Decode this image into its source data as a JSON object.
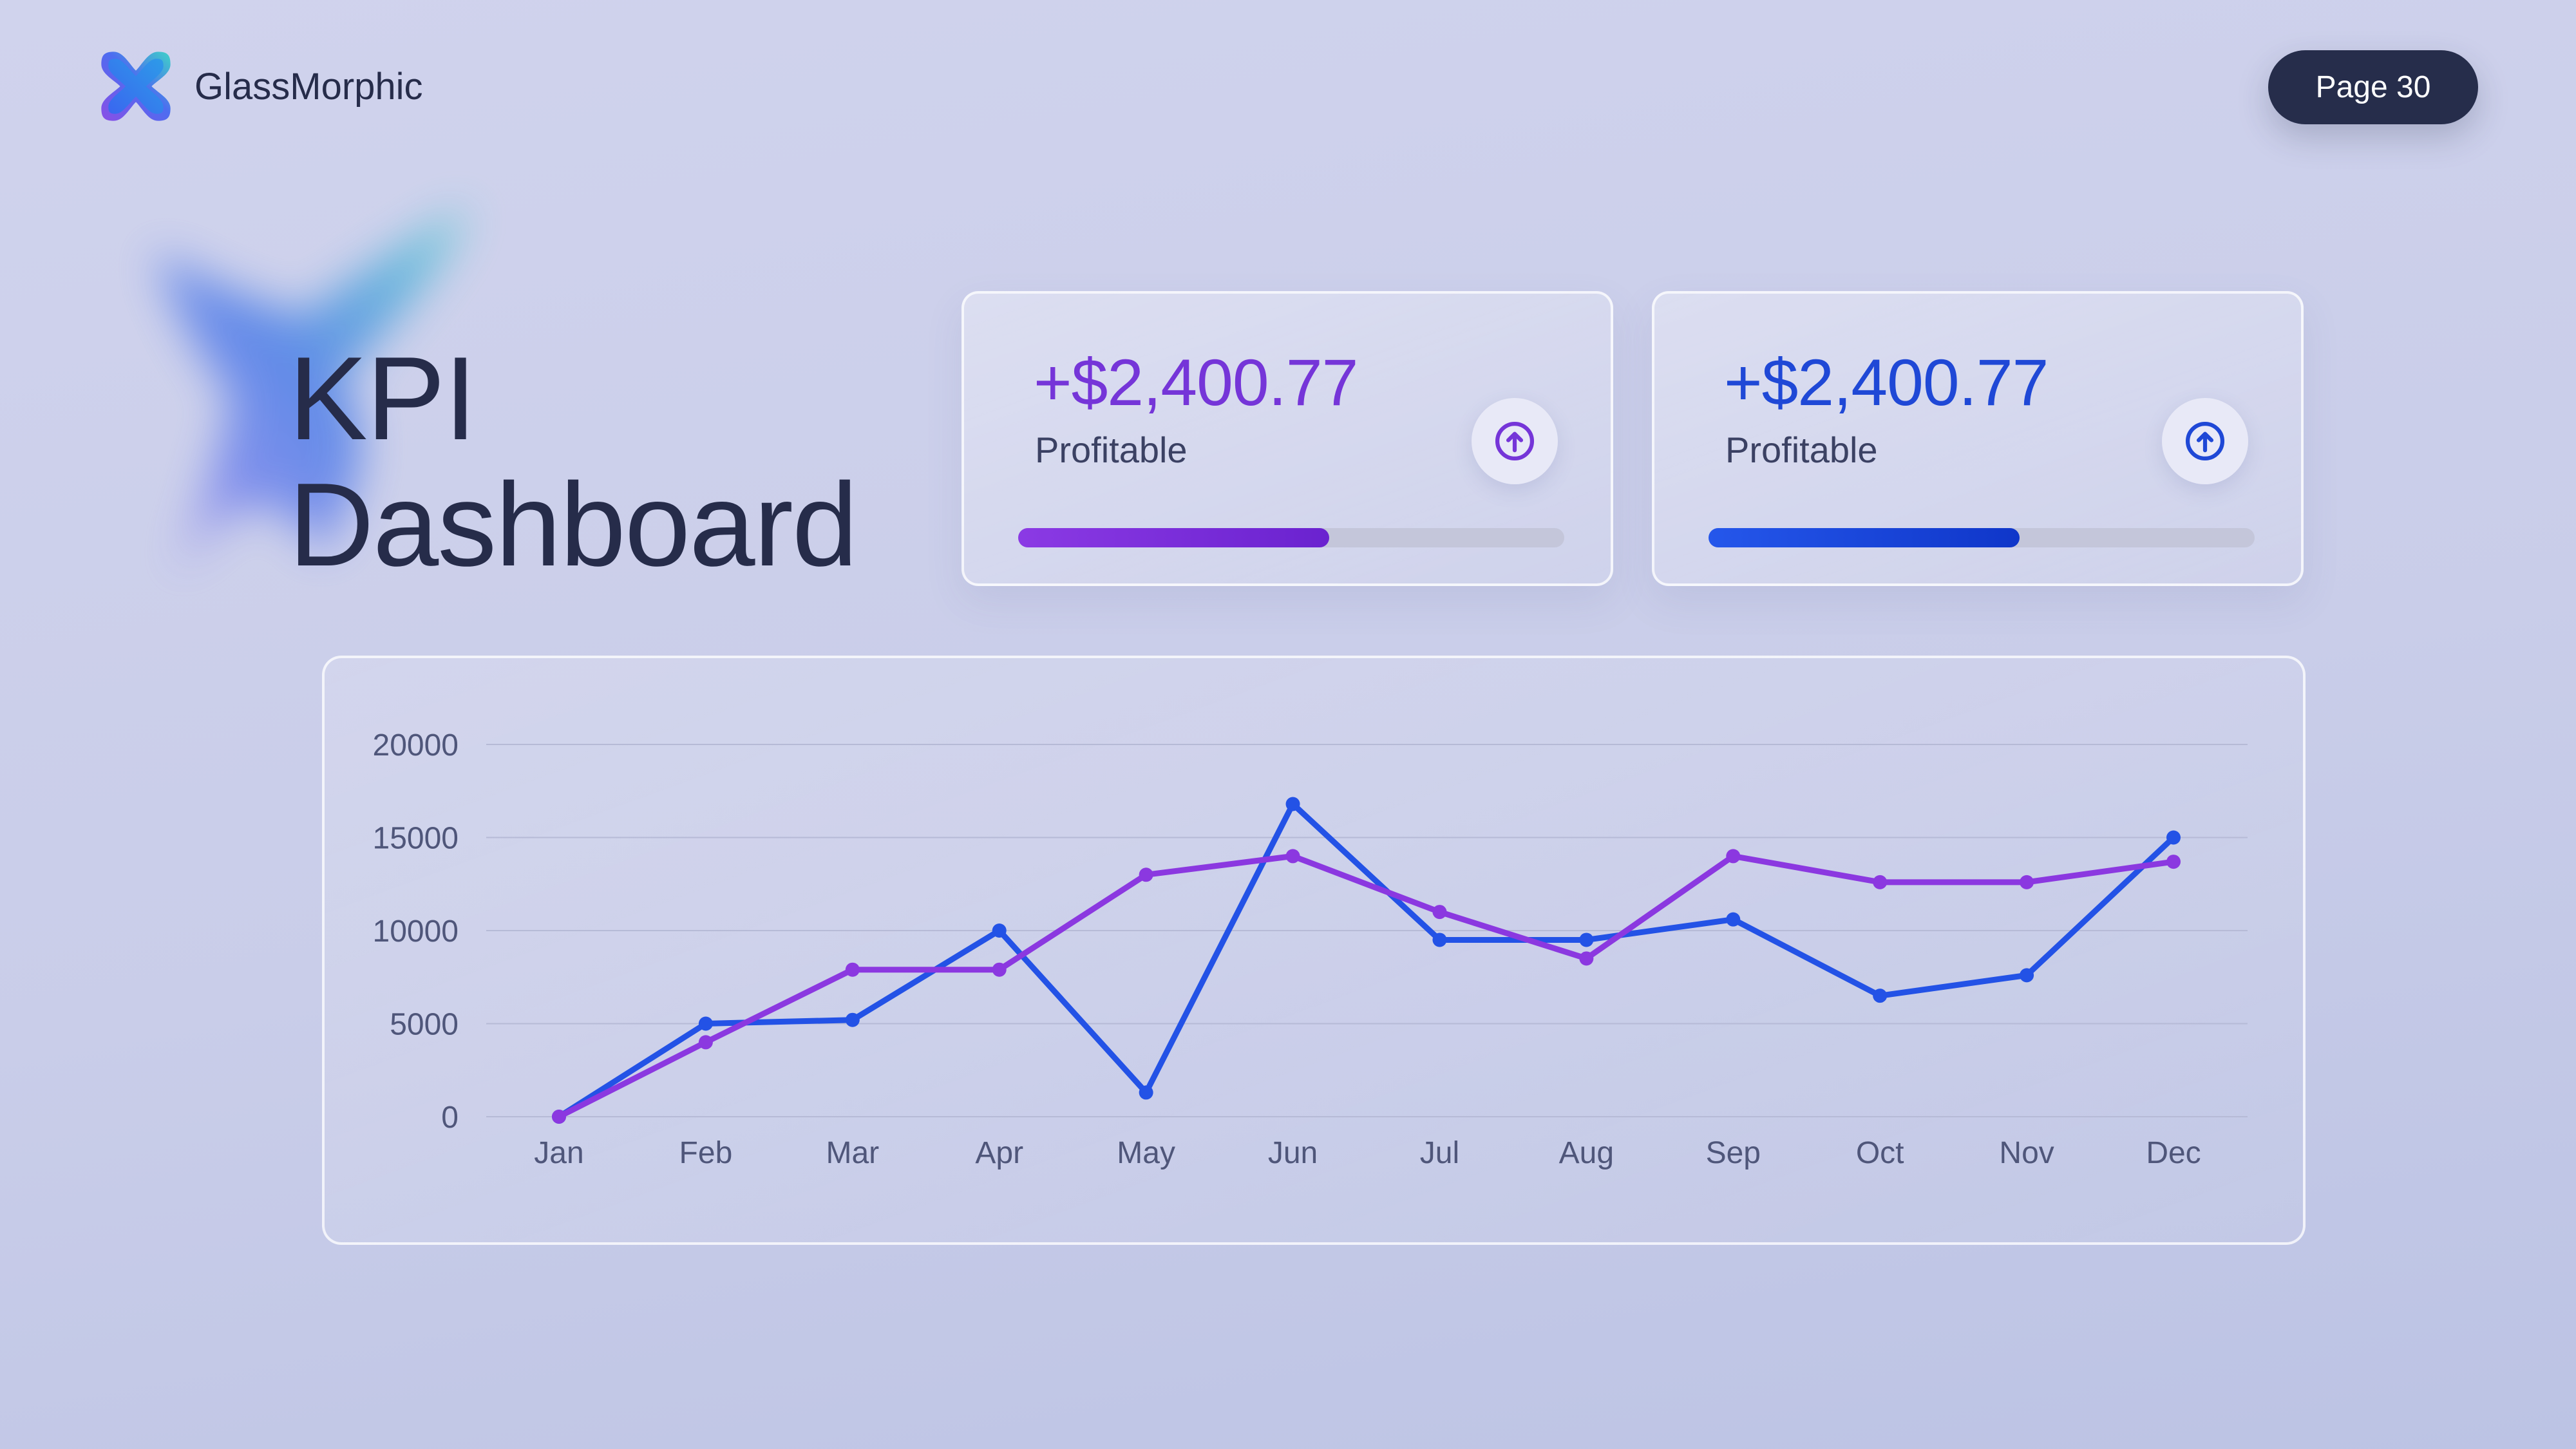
{
  "brand": {
    "name": "GlassMorphic",
    "logo_icon": "x-shape-logo-icon"
  },
  "header": {
    "page_label": "Page 30"
  },
  "title": {
    "line1": "KPI",
    "line2": "Dashboard"
  },
  "kpis": [
    {
      "value": "+$2,400.77",
      "label": "Profitable",
      "progress": 0.57,
      "color": "#7535d8",
      "icon": "arrow-up-circle-icon"
    },
    {
      "value": "+$2,400.77",
      "label": "Profitable",
      "progress": 0.57,
      "color": "#1f48d6",
      "icon": "arrow-up-circle-icon"
    }
  ],
  "chart_data": {
    "type": "line",
    "categories": [
      "Jan",
      "Feb",
      "Mar",
      "Apr",
      "May",
      "Jun",
      "Jul",
      "Aug",
      "Sep",
      "Oct",
      "Nov",
      "Dec"
    ],
    "series": [
      {
        "color": "#2352e6",
        "values": [
          0,
          5000,
          5200,
          10000,
          1300,
          16800,
          9500,
          9500,
          10600,
          6500,
          7600,
          15000
        ]
      },
      {
        "color": "#8b38e0",
        "values": [
          0,
          4000,
          7900,
          7900,
          13000,
          14000,
          11000,
          8500,
          14000,
          12600,
          12600,
          13700
        ]
      }
    ],
    "yticks": [
      0,
      5000,
      10000,
      15000,
      20000
    ],
    "ylim": [
      0,
      20000
    ],
    "grid": true,
    "legend": "none"
  }
}
